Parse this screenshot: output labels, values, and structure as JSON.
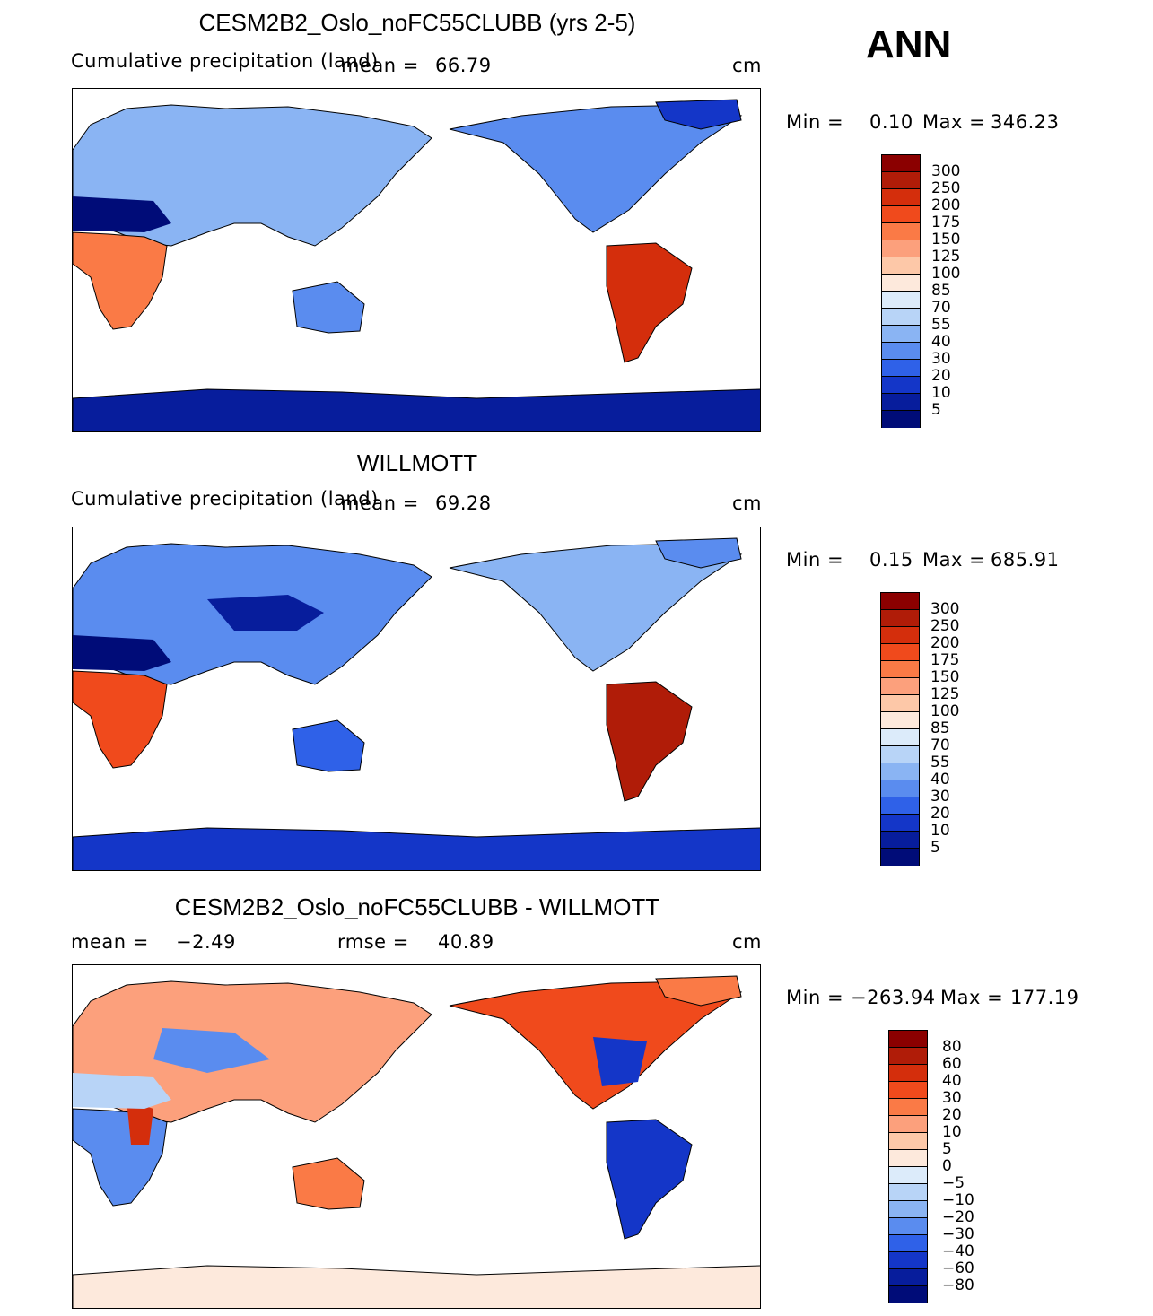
{
  "season": "ANN",
  "panels": [
    {
      "title": "CESM2B2_Oslo_noFC55CLUBB (yrs 2-5)",
      "subtitle": "Cumulative precipitation (land)",
      "mean_label": "mean =",
      "mean_value": "66.79",
      "units": "cm",
      "min_label": "Min =",
      "min_value": "0.10",
      "max_label": "Max =",
      "max_value": "346.23",
      "colorbar_labels": [
        "300",
        "250",
        "200",
        "175",
        "150",
        "125",
        "100",
        "85",
        "70",
        "55",
        "40",
        "30",
        "20",
        "10",
        "5"
      ]
    },
    {
      "title": "WILLMOTT",
      "subtitle": "Cumulative precipitation (land)",
      "mean_label": "mean =",
      "mean_value": "69.28",
      "units": "cm",
      "min_label": "Min =",
      "min_value": "0.15",
      "max_label": "Max =",
      "max_value": "685.91",
      "colorbar_labels": [
        "300",
        "250",
        "200",
        "175",
        "150",
        "125",
        "100",
        "85",
        "70",
        "55",
        "40",
        "30",
        "20",
        "10",
        "5"
      ]
    },
    {
      "title": "CESM2B2_Oslo_noFC55CLUBB - WILLMOTT",
      "mean_label": "mean =",
      "mean_value": "−2.49",
      "rmse_label": "rmse =",
      "rmse_value": "40.89",
      "units": "cm",
      "min_label": "Min =",
      "min_value": "−263.94",
      "max_label": "Max =",
      "max_value": "177.19",
      "colorbar_labels": [
        "80",
        "60",
        "40",
        "30",
        "20",
        "10",
        "5",
        "0",
        "−5",
        "−10",
        "−20",
        "−30",
        "−40",
        "−60",
        "−80"
      ]
    }
  ],
  "colors": {
    "abs_scale": [
      "#8b0000",
      "#b01c08",
      "#d42e0c",
      "#f04a1c",
      "#fa7a46",
      "#fca07c",
      "#fdc8a8",
      "#fde9dc",
      "#dcebfa",
      "#b8d4f7",
      "#8ab4f3",
      "#5a8cef",
      "#2f61e8",
      "#1436c8",
      "#071d9c",
      "#000c78"
    ],
    "diff_scale": [
      "#8b0000",
      "#b01c08",
      "#d42e0c",
      "#f04a1c",
      "#fa7a46",
      "#fca07c",
      "#fdc8a8",
      "#fde9dc",
      "#dcebfa",
      "#b8d4f7",
      "#8ab4f3",
      "#5a8cef",
      "#2f61e8",
      "#1436c8",
      "#071d9c",
      "#000c78"
    ]
  }
}
